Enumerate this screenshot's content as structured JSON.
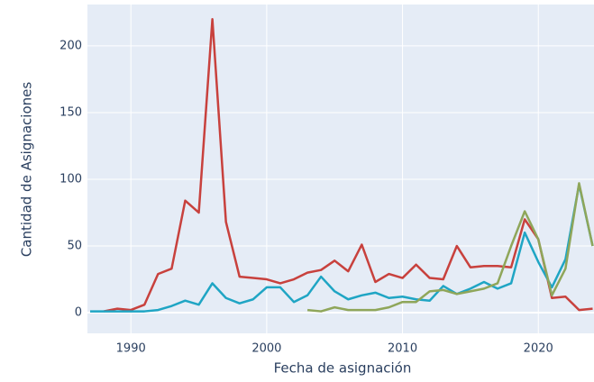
{
  "chart_data": {
    "type": "line",
    "x_label": "Fecha de asignación",
    "y_label": "Cantidad de Asignaciones",
    "x": [
      1987,
      1988,
      1989,
      1990,
      1991,
      1992,
      1993,
      1994,
      1995,
      1996,
      1997,
      1998,
      1999,
      2000,
      2001,
      2002,
      2003,
      2004,
      2005,
      2006,
      2007,
      2008,
      2009,
      2010,
      2011,
      2012,
      2013,
      2014,
      2015,
      2016,
      2017,
      2018,
      2019,
      2020,
      2021,
      2022,
      2023,
      2024
    ],
    "series": [
      {
        "color": "#c8413d",
        "values": [
          null,
          1,
          3,
          2,
          6,
          29,
          33,
          84,
          75,
          220,
          68,
          27,
          26,
          25,
          22,
          25,
          30,
          32,
          39,
          31,
          51,
          23,
          29,
          26,
          36,
          26,
          25,
          50,
          34,
          35,
          35,
          34,
          70,
          55,
          11,
          12,
          2,
          3
        ]
      },
      {
        "color": "#1fa5c4",
        "values": [
          1,
          1,
          1,
          1,
          1,
          2,
          5,
          9,
          6,
          22,
          11,
          7,
          10,
          19,
          19,
          8,
          13,
          27,
          16,
          10,
          13,
          15,
          11,
          12,
          10,
          9,
          20,
          14,
          18,
          23,
          18,
          22,
          60,
          38,
          19,
          40,
          96,
          50
        ]
      },
      {
        "color": "#8fa65a",
        "values": [
          null,
          null,
          null,
          null,
          null,
          null,
          null,
          null,
          null,
          null,
          null,
          null,
          null,
          null,
          null,
          null,
          2,
          1,
          4,
          2,
          2,
          2,
          4,
          8,
          8,
          16,
          17,
          14,
          16,
          18,
          22,
          50,
          76,
          55,
          13,
          33,
          97,
          50
        ]
      }
    ],
    "xlim": [
      1986.8,
      2024.1
    ],
    "ylim": [
      -15.5,
      231
    ],
    "xticks": [
      1990,
      2000,
      2010,
      2020
    ],
    "yticks": [
      0,
      50,
      100,
      150,
      200
    ],
    "grid": true
  }
}
